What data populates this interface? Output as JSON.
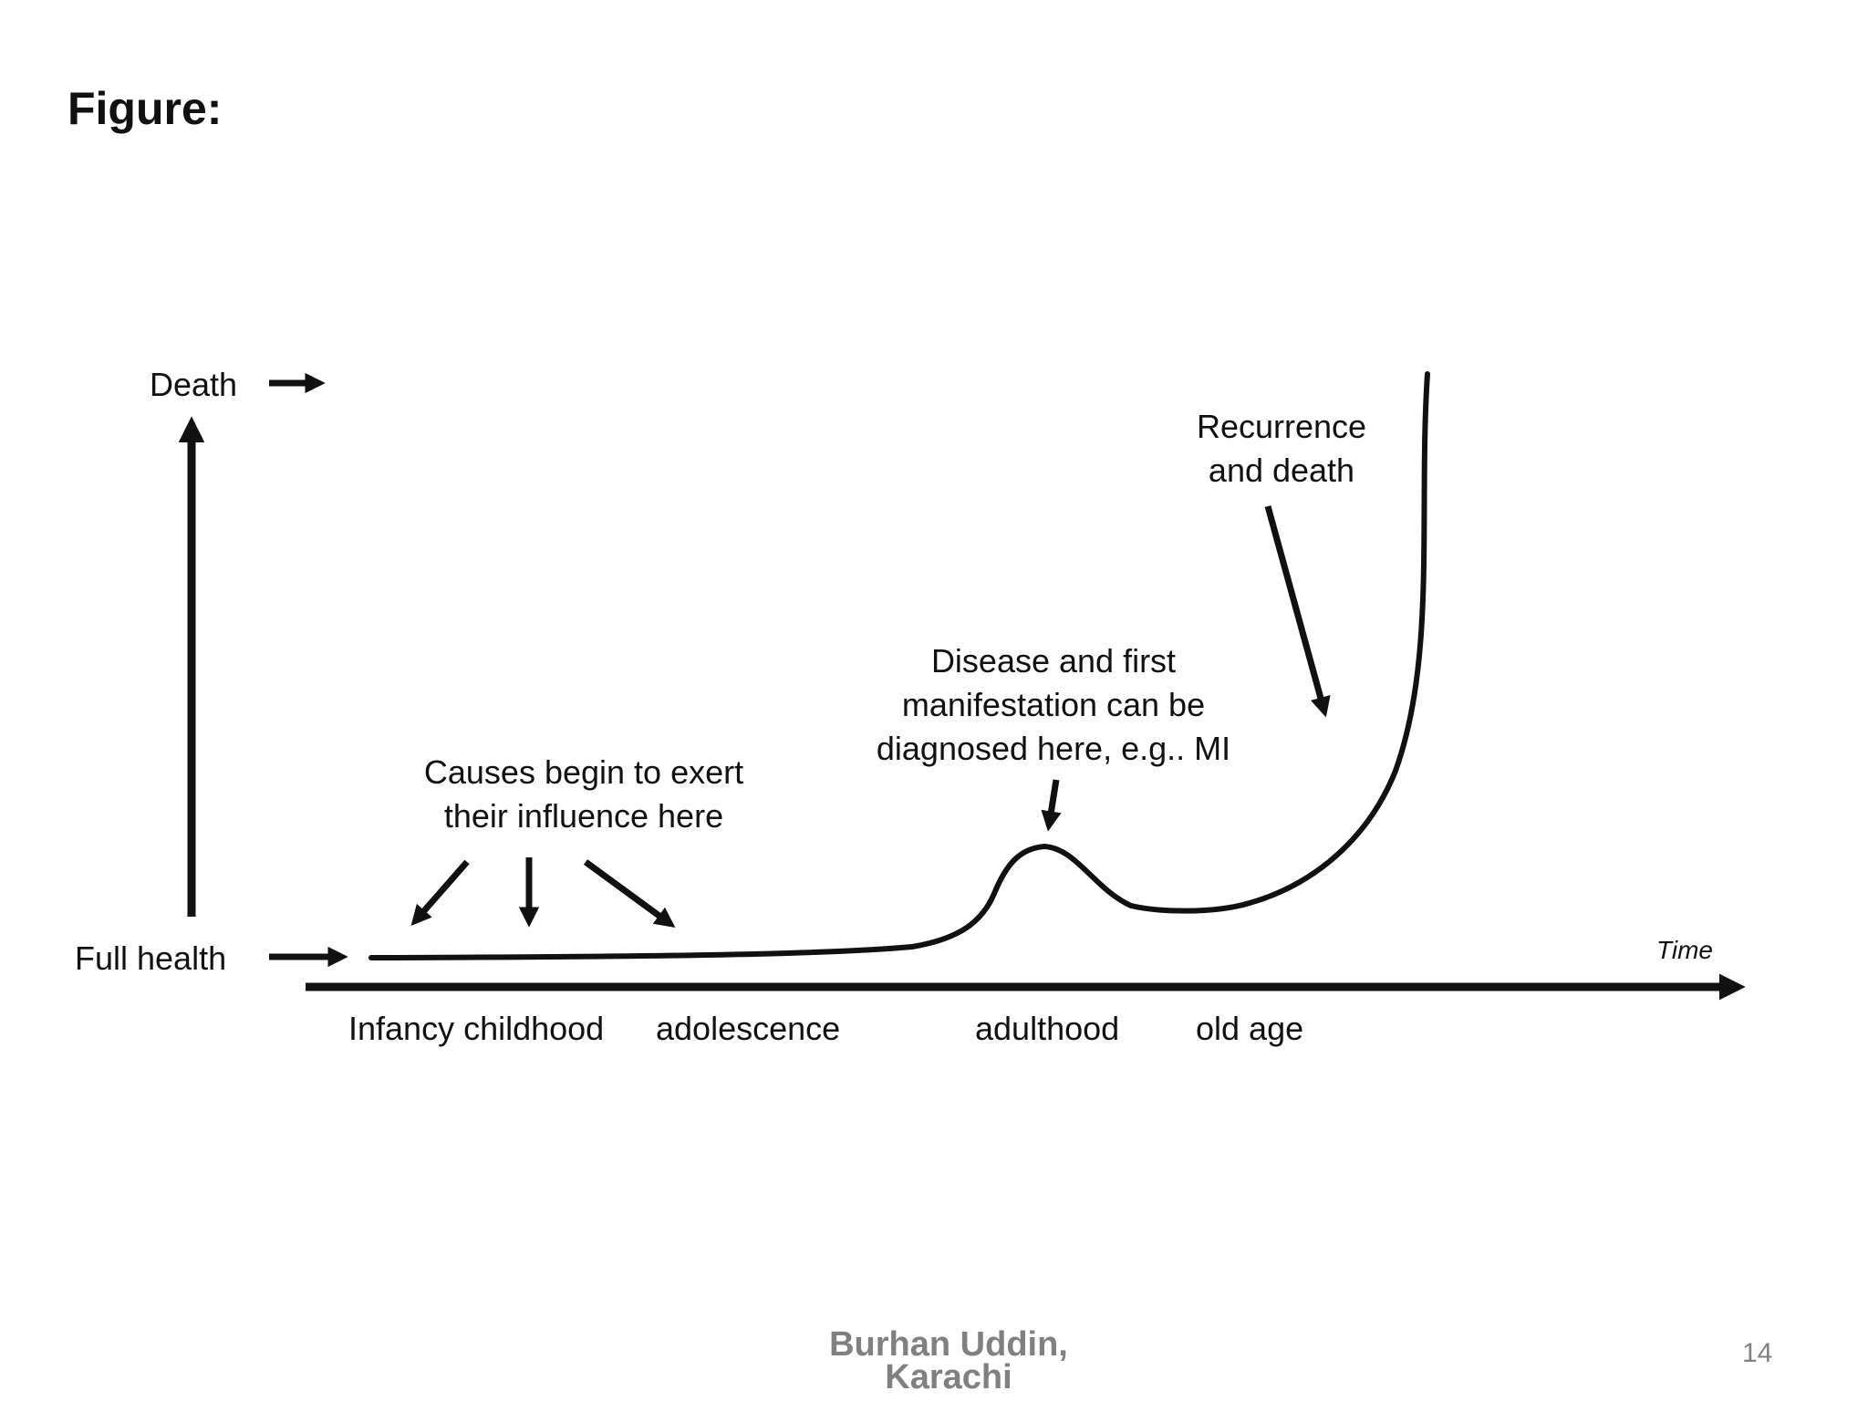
{
  "slide": {
    "heading": "Figure:",
    "author": "Burhan Uddin,\nKarachi",
    "page_number": "14"
  },
  "diagram": {
    "y_axis": {
      "top_label": "Death",
      "bottom_label": "Full health"
    },
    "x_axis": {
      "label": "Time",
      "stages": [
        "Infancy childhood",
        "adolescence",
        "adulthood",
        "old age"
      ]
    },
    "annotations": {
      "causes": "Causes begin to exert their influence here",
      "disease": "Disease and first manifestation can be diagnosed here, e.g.. MI",
      "recurrence": "Recurrence and death"
    }
  },
  "colors": {
    "ink": "#111111",
    "footer_gray": "#808080",
    "background": "#ffffff"
  }
}
